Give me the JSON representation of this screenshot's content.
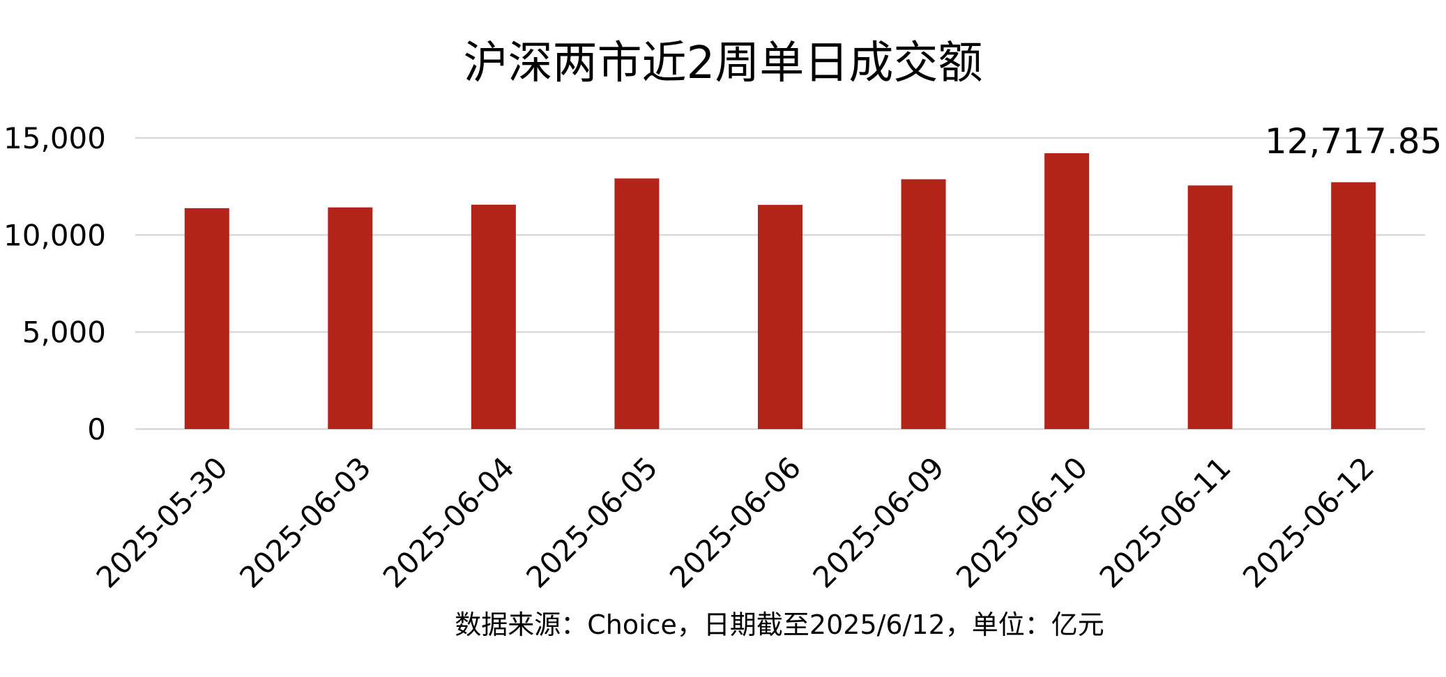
{
  "chart_data": {
    "type": "bar",
    "title": "沪深两市近2周单日成交额",
    "caption": "数据来源：Choice，日期截至2025/6/12，单位：亿元",
    "categories": [
      "2025-05-30",
      "2025-06-03",
      "2025-06-04",
      "2025-06-05",
      "2025-06-06",
      "2025-06-09",
      "2025-06-10",
      "2025-06-11",
      "2025-06-12"
    ],
    "series": [
      {
        "values": [
          11380,
          11420,
          11560,
          12910,
          11550,
          12870,
          14210,
          12550,
          12717.85
        ]
      }
    ],
    "ylim": [
      0,
      15000
    ],
    "yticks": [
      0,
      5000,
      10000,
      15000
    ],
    "ytick_labels": [
      "0",
      "5,000",
      "10,000",
      "15,000"
    ],
    "data_labels": [
      {
        "index": 8,
        "text": "12,717.85"
      }
    ],
    "bar_color": "#B22418",
    "grid_color": "#D9D9D9",
    "grid": true,
    "legend": "none"
  }
}
